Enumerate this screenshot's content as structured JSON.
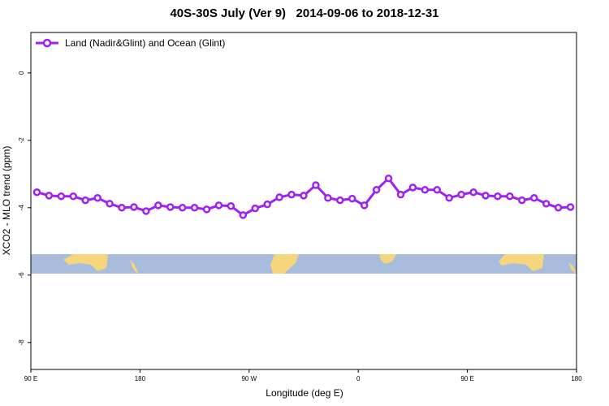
{
  "chart_data": {
    "type": "line",
    "title": "40S-30S July (Ver 9)   2014-09-06 to 2018-12-31",
    "x_label": "Longitude (deg E)",
    "y_label": "XCO2 - MLO trend (ppm)",
    "xlim": [
      90,
      540
    ],
    "ylim": [
      -8.8,
      1.2
    ],
    "xticks": [
      {
        "value": 90,
        "label": "90 E"
      },
      180,
      {
        "value": 270,
        "label": "90 W"
      },
      {
        "value": 360,
        "label": "0"
      },
      {
        "value": 450,
        "label": "90 E"
      },
      {
        "value": 540,
        "label": "180"
      }
    ],
    "yticks": [
      0,
      -2,
      -4,
      -6,
      -8
    ],
    "legend_position": "top-left",
    "series": [
      {
        "name": "Land (Nadir&Glint) and Ocean (Glint)",
        "color": "#a020f0",
        "x": [
          95,
          105,
          115,
          125,
          135,
          145,
          155,
          165,
          175,
          185,
          195,
          205,
          215,
          225,
          235,
          245,
          255,
          265,
          275,
          285,
          295,
          305,
          315,
          325,
          335,
          345,
          355,
          365,
          375,
          385,
          395,
          405,
          415,
          425,
          435,
          445,
          455,
          465,
          475,
          485,
          495,
          505,
          515,
          525,
          535
        ],
        "values": [
          -3.54,
          -3.64,
          -3.66,
          -3.66,
          -3.78,
          -3.71,
          -3.88,
          -4.0,
          -3.98,
          -4.1,
          -3.93,
          -3.98,
          -4.0,
          -4.0,
          -4.05,
          -3.93,
          -3.95,
          -4.22,
          -4.02,
          -3.9,
          -3.69,
          -3.61,
          -3.64,
          -3.33,
          -3.71,
          -3.78,
          -3.73,
          -3.93,
          -3.47,
          -3.13,
          -3.61,
          -3.4,
          -3.47,
          -3.47,
          -3.71,
          -3.61,
          -3.54,
          -3.64,
          -3.66,
          -3.66,
          -3.78,
          -3.71,
          -3.88,
          -4.0,
          -3.98
        ]
      }
    ]
  }
}
